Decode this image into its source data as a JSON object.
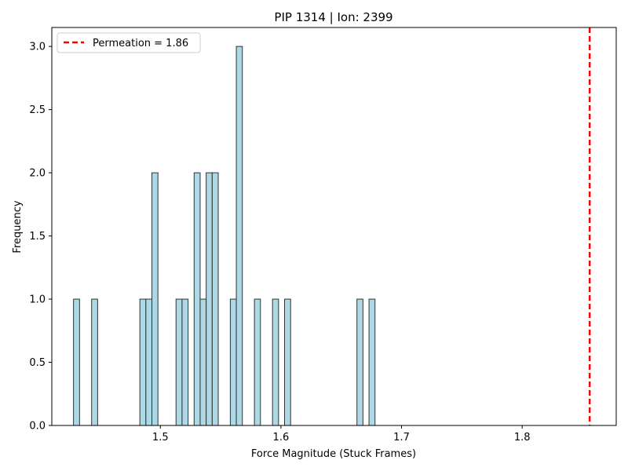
{
  "chart_data": {
    "type": "bar",
    "title": "PIP 1314 | Ion: 2399",
    "xlabel": "Force Magnitude (Stuck Frames)",
    "ylabel": "Frequency",
    "xlim": [
      1.41,
      1.878
    ],
    "ylim": [
      0,
      3.15
    ],
    "xticks": [
      1.5,
      1.6,
      1.7,
      1.8
    ],
    "xtick_labels": [
      "1.5",
      "1.6",
      "1.7",
      "1.8"
    ],
    "yticks": [
      0,
      0.5,
      1.0,
      1.5,
      2.0,
      2.5,
      3.0
    ],
    "ytick_labels": [
      "0.0",
      "0.5",
      "1.0",
      "1.5",
      "2.0",
      "2.5",
      "3.0"
    ],
    "bin_width": 0.005,
    "bins": [
      {
        "x": 1.4305,
        "count": 1
      },
      {
        "x": 1.4455,
        "count": 1
      },
      {
        "x": 1.4855,
        "count": 1
      },
      {
        "x": 1.4905,
        "count": 1
      },
      {
        "x": 1.4955,
        "count": 2
      },
      {
        "x": 1.5155,
        "count": 1
      },
      {
        "x": 1.5205,
        "count": 1
      },
      {
        "x": 1.5305,
        "count": 2
      },
      {
        "x": 1.5355,
        "count": 1
      },
      {
        "x": 1.5405,
        "count": 2
      },
      {
        "x": 1.5455,
        "count": 2
      },
      {
        "x": 1.5605,
        "count": 1
      },
      {
        "x": 1.5655,
        "count": 3
      },
      {
        "x": 1.5805,
        "count": 1
      },
      {
        "x": 1.5955,
        "count": 1
      },
      {
        "x": 1.6055,
        "count": 1
      },
      {
        "x": 1.6655,
        "count": 1
      },
      {
        "x": 1.6755,
        "count": 1
      }
    ],
    "bar_color": "#add8e6",
    "bar_edge_color": "#333333",
    "vline": {
      "x": 1.856,
      "color": "#ff0000",
      "style": "dashed",
      "label": "Permeation = 1.86"
    },
    "legend": {
      "position": "upper-left",
      "entries": [
        "Permeation = 1.86"
      ]
    },
    "grid": false
  }
}
